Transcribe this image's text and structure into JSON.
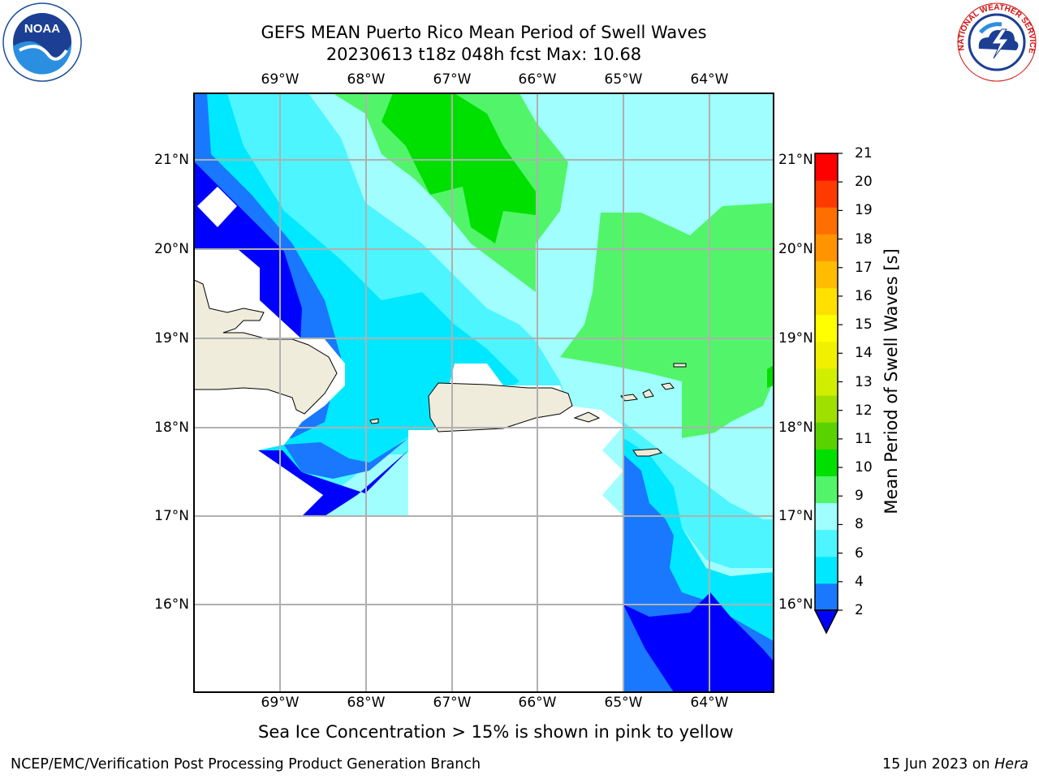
{
  "header": {
    "title_line1": "GEFS MEAN Puerto Rico Mean Period of Swell Waves",
    "title_line2": "20230613 t18z 048h fcst   Max: 10.68"
  },
  "logos": {
    "left": {
      "icon": "noaa-logo-icon",
      "text": "NOAA"
    },
    "right": {
      "icon": "nws-logo-icon",
      "text": "NATIONAL WEATHER SERVICE"
    }
  },
  "map": {
    "lon_labels": [
      "69°W",
      "68°W",
      "67°W",
      "66°W",
      "65°W",
      "64°W"
    ],
    "lat_labels": [
      "21°N",
      "20°N",
      "19°N",
      "18°N",
      "17°N",
      "16°N"
    ],
    "colors": {
      "land": "#efecdc",
      "below_2": "#0000ff",
      "grid": "#b0b0b0"
    }
  },
  "colorbar": {
    "title": "Mean Period of Swell Waves [s]",
    "ticks": [
      "21",
      "20",
      "19",
      "18",
      "17",
      "16",
      "15",
      "14",
      "13",
      "12",
      "11",
      "10",
      "9",
      "8",
      "6",
      "4",
      "2"
    ],
    "colors": [
      "#1a78ff",
      "#00e8ff",
      "#4cf5ff",
      "#a0feff",
      "#52f56a",
      "#00e000",
      "#5ad200",
      "#a0e000",
      "#d2ee00",
      "#f0f000",
      "#ffff00",
      "#ffe000",
      "#ffbc00",
      "#ff9400",
      "#ff6e00",
      "#ff3a00",
      "#ff0000"
    ]
  },
  "footer": {
    "note": "Sea Ice Concentration > 15% is shown in pink to yellow",
    "left": "NCEP/EMC/Verification Post Processing Product Generation Branch",
    "right_prefix": "15 Jun 2023 on ",
    "right_machine": "Hera"
  }
}
